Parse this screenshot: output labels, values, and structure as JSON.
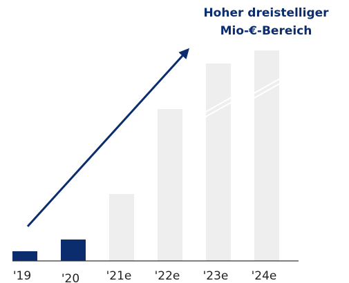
{
  "chart_data": {
    "type": "bar",
    "annotation": [
      "Hoher dreistelliger",
      "Mio-€-Bereich"
    ],
    "categories": [
      "'19",
      "'20",
      "'21e",
      "'22e",
      "'23e",
      "'24e"
    ],
    "values": [
      14,
      31,
      97,
      220,
      286,
      305
    ],
    "colors": [
      "#0b2d6e",
      "#0b2d6e",
      "#eeeeee",
      "#eeeeee",
      "#eeeeee",
      "#eeeeee"
    ],
    "ylim": [
      0,
      320
    ]
  }
}
